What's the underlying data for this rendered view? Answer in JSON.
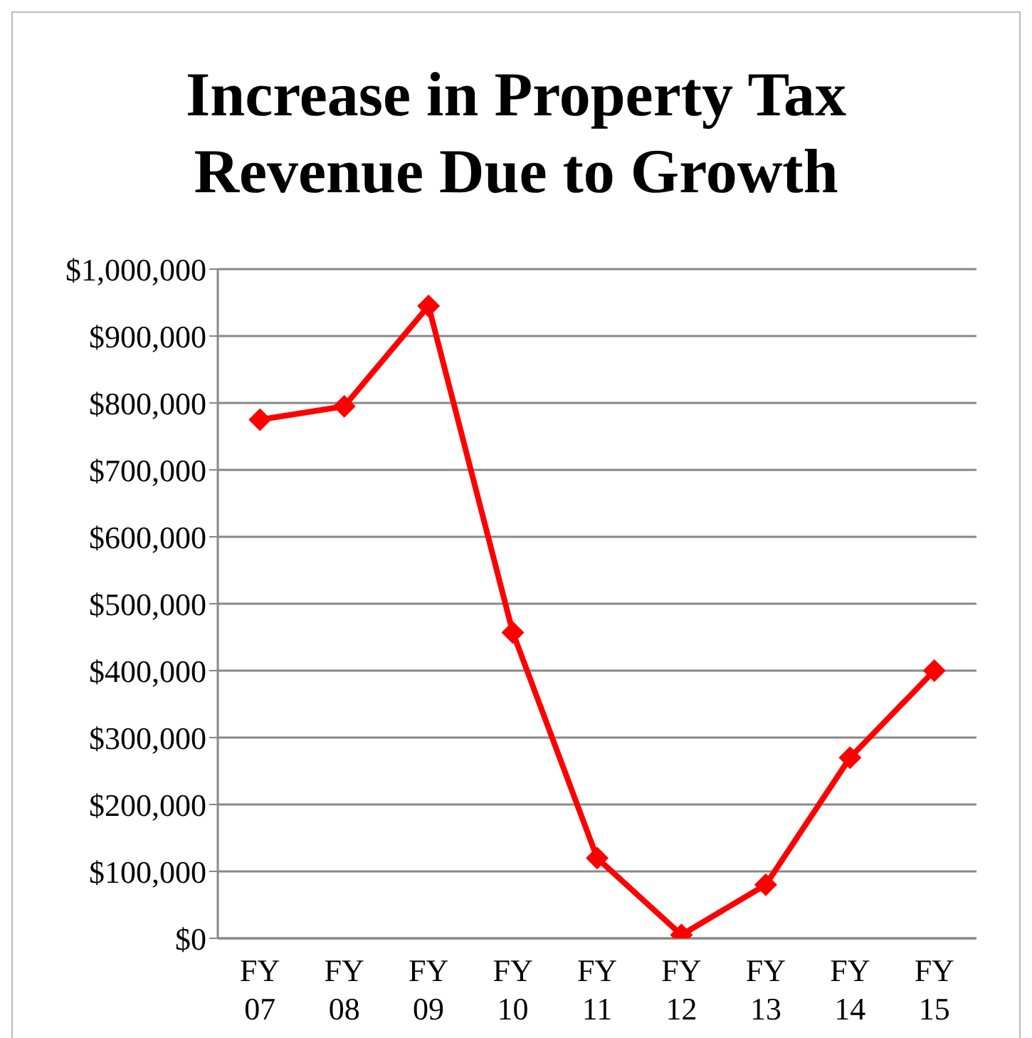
{
  "chart_data": {
    "type": "line",
    "title": "Increase in Property Tax Revenue Due to Growth",
    "categories": [
      "FY 07",
      "FY 08",
      "FY 09",
      "FY 10",
      "FY 11",
      "FY 12",
      "FY 13",
      "FY 14",
      "FY 15"
    ],
    "series": [
      {
        "color": "#ff0000",
        "values": [
          775000,
          795000,
          945000,
          457000,
          120000,
          5000,
          80000,
          270000,
          400000
        ]
      }
    ],
    "ylim": [
      0,
      1000000
    ],
    "yticks": [
      {
        "value": 0,
        "label": "$0"
      },
      {
        "value": 100000,
        "label": "$100,000"
      },
      {
        "value": 200000,
        "label": "$200,000"
      },
      {
        "value": 300000,
        "label": "$300,000"
      },
      {
        "value": 400000,
        "label": "$400,000"
      },
      {
        "value": 500000,
        "label": "$500,000"
      },
      {
        "value": 600000,
        "label": "$600,000"
      },
      {
        "value": 700000,
        "label": "$700,000"
      },
      {
        "value": 800000,
        "label": "$800,000"
      },
      {
        "value": 900000,
        "label": "$900,000"
      },
      {
        "value": 1000000,
        "label": "$1,000,000"
      }
    ],
    "grid": "y",
    "marker": "diamond",
    "line_style": "solid"
  }
}
